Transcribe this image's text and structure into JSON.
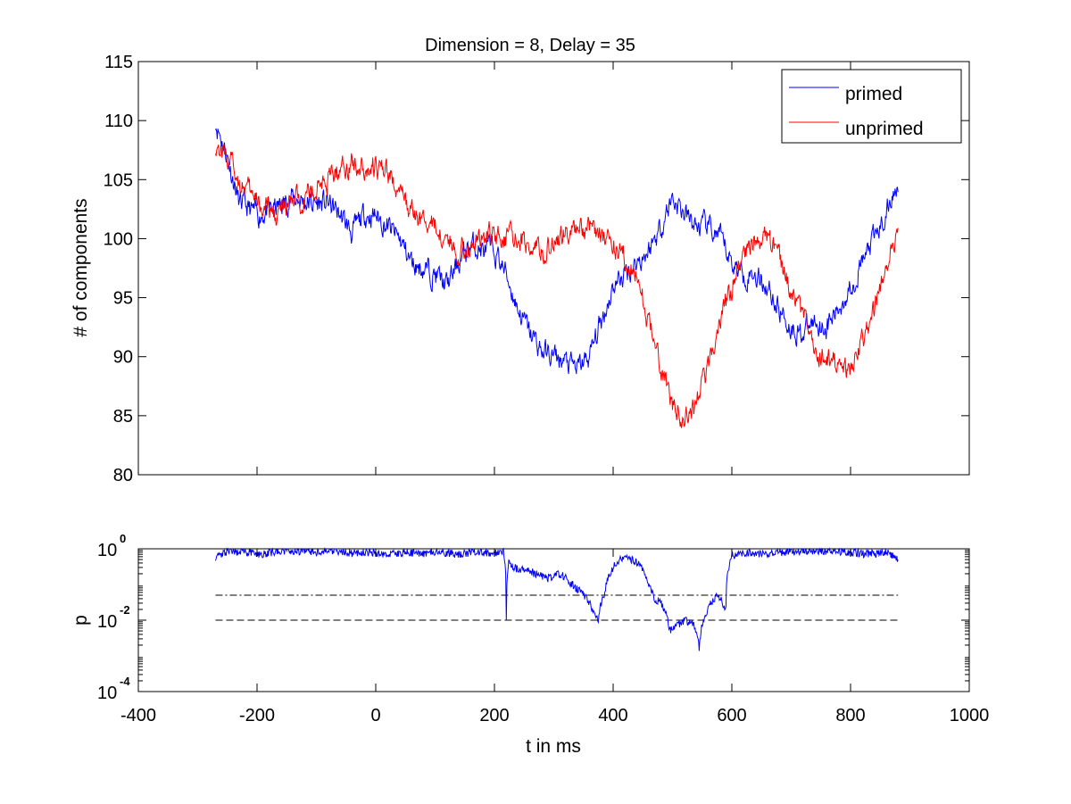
{
  "chart_data": [
    {
      "type": "line",
      "title": "Dimension  = 8, Delay = 35",
      "xlabel": "",
      "ylabel": "# of components",
      "xlim": [
        -400,
        1000
      ],
      "ylim": [
        80,
        115
      ],
      "yticks": [
        "80",
        "85",
        "90",
        "95",
        "100",
        "105",
        "110",
        "115"
      ],
      "grid": false,
      "legend": "top-right",
      "series": [
        {
          "name": "primed",
          "color": "#0000ff",
          "x": [
            -270,
            -250,
            -230,
            -200,
            -170,
            -140,
            -110,
            -80,
            -60,
            -40,
            -20,
            0,
            20,
            40,
            60,
            80,
            100,
            120,
            140,
            160,
            180,
            200,
            220,
            240,
            260,
            280,
            300,
            320,
            340,
            360,
            380,
            400,
            420,
            440,
            460,
            480,
            500,
            520,
            540,
            560,
            580,
            600,
            620,
            640,
            660,
            680,
            700,
            720,
            740,
            760,
            780,
            800,
            820,
            840,
            860,
            880
          ],
          "values": [
            110,
            107,
            103,
            102,
            102.5,
            103.5,
            103,
            103,
            102,
            100.5,
            102,
            102,
            101,
            100,
            98,
            97.5,
            97,
            96,
            98,
            99.5,
            99,
            99,
            97,
            94,
            92,
            90.5,
            90,
            89.5,
            89,
            90,
            93,
            96,
            97,
            98,
            99,
            101,
            103.5,
            102,
            101,
            101,
            100,
            98,
            97,
            97,
            96,
            94,
            92.5,
            92,
            93,
            92.5,
            94,
            96,
            98,
            100,
            102,
            105
          ]
        },
        {
          "name": "unprimed",
          "color": "#ff0000",
          "x": [
            -270,
            -250,
            -230,
            -200,
            -170,
            -140,
            -110,
            -80,
            -60,
            -40,
            -20,
            0,
            20,
            40,
            60,
            80,
            100,
            120,
            140,
            160,
            180,
            200,
            220,
            240,
            260,
            280,
            300,
            320,
            340,
            360,
            380,
            400,
            420,
            440,
            460,
            480,
            500,
            520,
            540,
            560,
            580,
            600,
            620,
            640,
            660,
            680,
            700,
            720,
            740,
            760,
            780,
            800,
            820,
            840,
            860,
            880
          ],
          "values": [
            108,
            107,
            105,
            103,
            102,
            103,
            104,
            105,
            106,
            106.5,
            106,
            106,
            105.5,
            104,
            102,
            101.5,
            101,
            100,
            99,
            99.5,
            100,
            100.5,
            100,
            100,
            99.5,
            99,
            99.5,
            100.5,
            101,
            101,
            100.5,
            99.5,
            98.5,
            96.5,
            93,
            89,
            86,
            84.5,
            86,
            89,
            93,
            96,
            99,
            100,
            100,
            98.5,
            96,
            93,
            91,
            90,
            89,
            88.5,
            91,
            94,
            98,
            100
          ]
        }
      ]
    },
    {
      "type": "line",
      "title": "",
      "xlabel": "t in ms",
      "ylabel": "p",
      "xlim": [
        -400,
        1000
      ],
      "xticks": [
        "-400",
        "-200",
        "0",
        "200",
        "400",
        "600",
        "800",
        "1000"
      ],
      "yscale": "log",
      "ylim": [
        0.0001,
        1
      ],
      "yticks": [
        {
          "base": "10",
          "exp": "0"
        },
        {
          "base": "10",
          "exp": "-2"
        },
        {
          "base": "10",
          "exp": "-4"
        }
      ],
      "grid": false,
      "reference_lines": [
        {
          "y": 0.05,
          "style": "dash-dot",
          "color": "#000000"
        },
        {
          "y": 0.01,
          "style": "dashed",
          "color": "#000000"
        }
      ],
      "series": [
        {
          "color": "#0000ff",
          "x": [
            -270,
            -250,
            -220,
            -190,
            -160,
            -130,
            -100,
            -70,
            -40,
            -10,
            20,
            50,
            80,
            110,
            140,
            170,
            200,
            215,
            220,
            225,
            230,
            250,
            270,
            290,
            310,
            330,
            350,
            365,
            375,
            385,
            400,
            420,
            440,
            460,
            470,
            480,
            495,
            505,
            520,
            535,
            545,
            560,
            575,
            590,
            600,
            620,
            650,
            680,
            710,
            740,
            770,
            800,
            830,
            860,
            880
          ],
          "values": [
            0.6,
            0.85,
            0.8,
            0.7,
            0.9,
            0.85,
            0.8,
            0.9,
            0.75,
            0.8,
            0.7,
            0.8,
            0.75,
            0.8,
            0.7,
            0.8,
            0.75,
            0.85,
            0.01,
            0.5,
            0.3,
            0.25,
            0.2,
            0.15,
            0.2,
            0.1,
            0.05,
            0.02,
            0.01,
            0.05,
            0.3,
            0.6,
            0.4,
            0.1,
            0.04,
            0.03,
            0.005,
            0.006,
            0.01,
            0.008,
            0.0015,
            0.02,
            0.05,
            0.02,
            0.6,
            0.8,
            0.7,
            0.8,
            0.85,
            0.9,
            0.85,
            0.8,
            0.7,
            0.8,
            0.5
          ]
        }
      ]
    }
  ]
}
